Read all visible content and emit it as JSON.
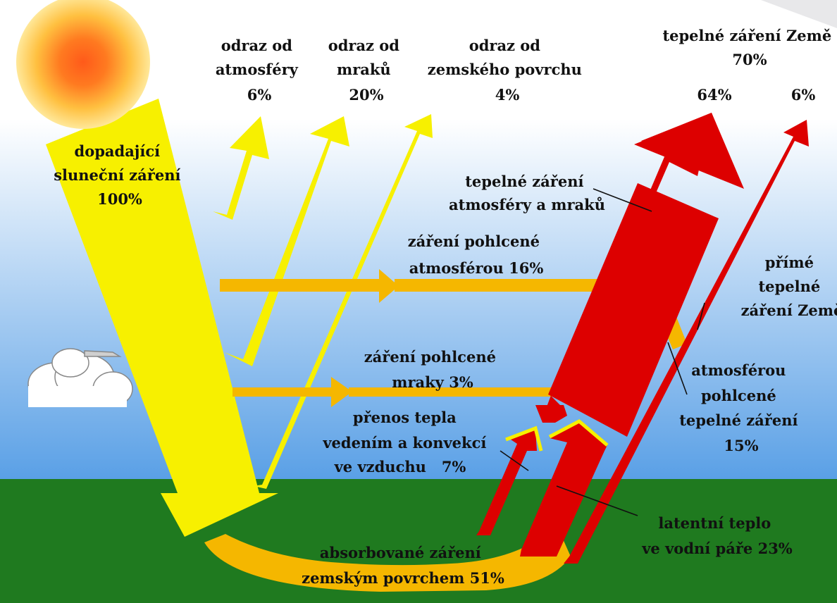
{
  "colors": {
    "sky_top": "#ffffff",
    "sky_bottom": "#5aa0e6",
    "ground": "#1f7a1f",
    "sun_outer": "#ffe89a",
    "sun_core": "#ff5a1a",
    "solar_yellow": "#f7f000",
    "absorbed_orange": "#f5b700",
    "infrared_red": "#dd0000",
    "cloud": "#ffffff"
  },
  "labels": {
    "incoming": [
      "dopadající",
      "sluneční záření",
      "100%"
    ],
    "reflect_atmosphere": [
      "odraz od",
      "atmosféry",
      "6%"
    ],
    "reflect_clouds": [
      "odraz od",
      "mraků",
      "20%"
    ],
    "reflect_surface": [
      "odraz od",
      "zemského povrchu",
      "4%"
    ],
    "earth_thermal": [
      "tepelné záření Země",
      "70%"
    ],
    "pct_64": "64%",
    "pct_6": "6%",
    "thermal_atm_clouds": [
      "tepelné záření",
      "atmosféry a mraků"
    ],
    "absorbed_atm": [
      "záření pohlcené",
      "atmosférou 16%"
    ],
    "direct_thermal": [
      "přímé",
      "tepelné",
      "záření Země"
    ],
    "absorbed_clouds": [
      "záření pohlcené",
      "mraky 3%"
    ],
    "atm_absorbed_thermal": [
      "atmosférou",
      "pohlcené",
      "tepelné záření",
      "15%"
    ],
    "conduction": [
      "přenos tepla",
      "vedením a konvekcí",
      "ve vzduchu   7%"
    ],
    "latent": [
      "latentní teplo",
      "ve vodní páře 23%"
    ],
    "absorbed_surface": [
      "absorbované záření",
      "zemským povrchem 51%"
    ]
  }
}
